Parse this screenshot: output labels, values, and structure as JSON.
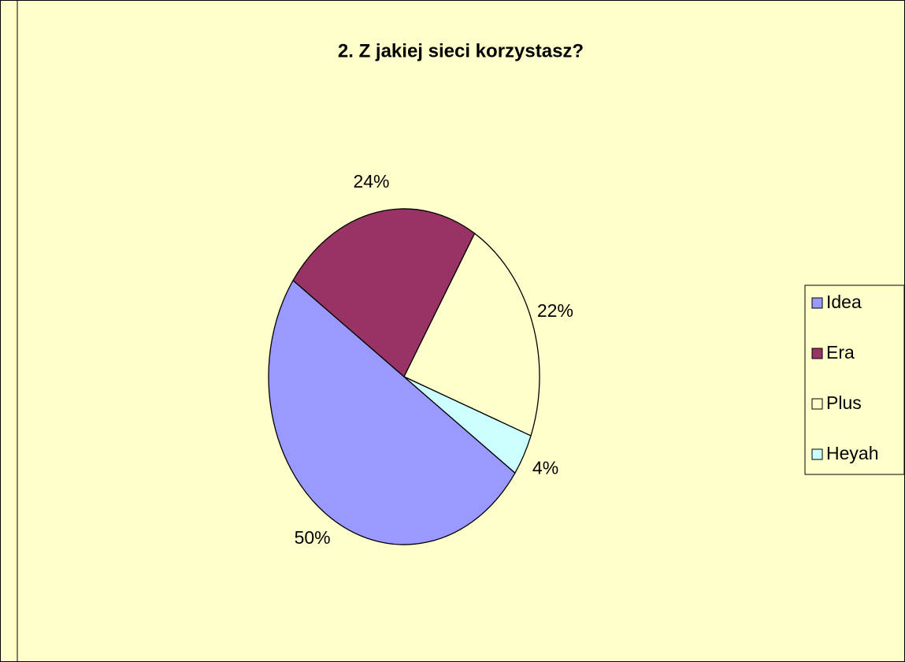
{
  "chart_data": {
    "type": "pie",
    "title": "2. Z jakiej sieci korzystasz?",
    "categories": [
      "Idea",
      "Era",
      "Plus",
      "Heyah"
    ],
    "values": [
      50,
      24,
      22,
      4
    ],
    "value_labels": [
      "50%",
      "24%",
      "22%",
      "4%"
    ],
    "colors": [
      "#9999ff",
      "#993366",
      "#ffffcc",
      "#ccffff"
    ],
    "legend": "right"
  }
}
